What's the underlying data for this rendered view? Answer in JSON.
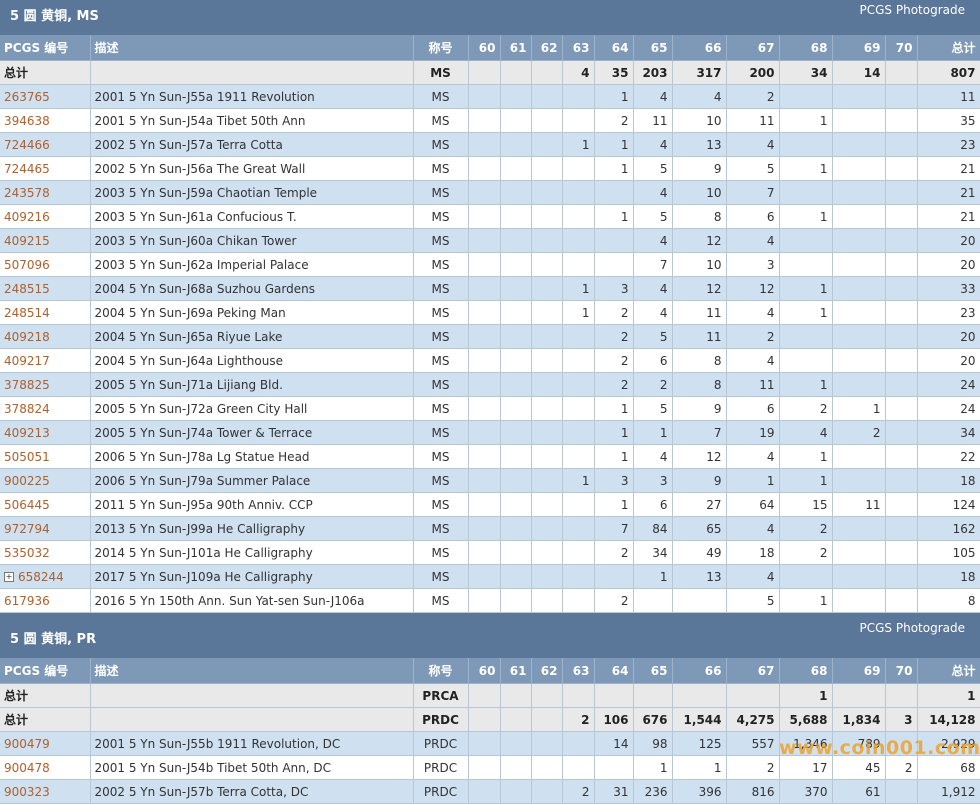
{
  "columns": [
    "PCGS 编号",
    "描述",
    "称号",
    "60",
    "61",
    "62",
    "63",
    "64",
    "65",
    "66",
    "67",
    "68",
    "69",
    "70",
    "总计"
  ],
  "sections": [
    {
      "title": "5 圆 黄铜, MS",
      "link": "PCGS Photograde",
      "totals": [
        {
          "label": "总计",
          "grade": "MS",
          "vals": [
            "",
            "",
            "",
            "4",
            "35",
            "203",
            "317",
            "200",
            "34",
            "14",
            "",
            "807"
          ]
        }
      ],
      "rows": [
        {
          "id": "263765",
          "desc": "2001 5 Yn Sun-J55a 1911 Revolution",
          "grade": "MS",
          "vals": [
            "",
            "",
            "",
            "",
            "1",
            "4",
            "4",
            "2",
            "",
            "",
            "",
            "11"
          ]
        },
        {
          "id": "394638",
          "desc": "2001 5 Yn Sun-J54a Tibet 50th Ann",
          "grade": "MS",
          "vals": [
            "",
            "",
            "",
            "",
            "2",
            "11",
            "10",
            "11",
            "1",
            "",
            "",
            "35"
          ]
        },
        {
          "id": "724466",
          "desc": "2002 5 Yn Sun-J57a Terra Cotta",
          "grade": "MS",
          "vals": [
            "",
            "",
            "",
            "1",
            "1",
            "4",
            "13",
            "4",
            "",
            "",
            "",
            "23"
          ]
        },
        {
          "id": "724465",
          "desc": "2002 5 Yn Sun-J56a The Great Wall",
          "grade": "MS",
          "vals": [
            "",
            "",
            "",
            "",
            "1",
            "5",
            "9",
            "5",
            "1",
            "",
            "",
            "21"
          ]
        },
        {
          "id": "243578",
          "desc": "2003 5 Yn Sun-J59a Chaotian Temple",
          "grade": "MS",
          "vals": [
            "",
            "",
            "",
            "",
            "",
            "4",
            "10",
            "7",
            "",
            "",
            "",
            "21"
          ]
        },
        {
          "id": "409216",
          "desc": "2003 5 Yn Sun-J61a Confucious T.",
          "grade": "MS",
          "vals": [
            "",
            "",
            "",
            "",
            "1",
            "5",
            "8",
            "6",
            "1",
            "",
            "",
            "21"
          ]
        },
        {
          "id": "409215",
          "desc": "2003 5 Yn Sun-J60a Chikan Tower",
          "grade": "MS",
          "vals": [
            "",
            "",
            "",
            "",
            "",
            "4",
            "12",
            "4",
            "",
            "",
            "",
            "20"
          ]
        },
        {
          "id": "507096",
          "desc": "2003 5 Yn Sun-J62a Imperial Palace",
          "grade": "MS",
          "vals": [
            "",
            "",
            "",
            "",
            "",
            "7",
            "10",
            "3",
            "",
            "",
            "",
            "20"
          ]
        },
        {
          "id": "248515",
          "desc": "2004 5 Yn Sun-J68a Suzhou Gardens",
          "grade": "MS",
          "vals": [
            "",
            "",
            "",
            "1",
            "3",
            "4",
            "12",
            "12",
            "1",
            "",
            "",
            "33"
          ]
        },
        {
          "id": "248514",
          "desc": "2004 5 Yn Sun-J69a Peking Man",
          "grade": "MS",
          "vals": [
            "",
            "",
            "",
            "1",
            "2",
            "4",
            "11",
            "4",
            "1",
            "",
            "",
            "23"
          ]
        },
        {
          "id": "409218",
          "desc": "2004 5 Yn Sun-J65a Riyue Lake",
          "grade": "MS",
          "vals": [
            "",
            "",
            "",
            "",
            "2",
            "5",
            "11",
            "2",
            "",
            "",
            "",
            "20"
          ]
        },
        {
          "id": "409217",
          "desc": "2004 5 Yn Sun-J64a Lighthouse",
          "grade": "MS",
          "vals": [
            "",
            "",
            "",
            "",
            "2",
            "6",
            "8",
            "4",
            "",
            "",
            "",
            "20"
          ]
        },
        {
          "id": "378825",
          "desc": "2005 5 Yn Sun-J71a Lijiang Bld.",
          "grade": "MS",
          "vals": [
            "",
            "",
            "",
            "",
            "2",
            "2",
            "8",
            "11",
            "1",
            "",
            "",
            "24"
          ]
        },
        {
          "id": "378824",
          "desc": "2005 5 Yn Sun-J72a Green City Hall",
          "grade": "MS",
          "vals": [
            "",
            "",
            "",
            "",
            "1",
            "5",
            "9",
            "6",
            "2",
            "1",
            "",
            "24"
          ]
        },
        {
          "id": "409213",
          "desc": "2005 5 Yn Sun-J74a Tower & Terrace",
          "grade": "MS",
          "vals": [
            "",
            "",
            "",
            "",
            "1",
            "1",
            "7",
            "19",
            "4",
            "2",
            "",
            "34"
          ]
        },
        {
          "id": "505051",
          "desc": "2006 5 Yn Sun-J78a Lg Statue Head",
          "grade": "MS",
          "vals": [
            "",
            "",
            "",
            "",
            "1",
            "4",
            "12",
            "4",
            "1",
            "",
            "",
            "22"
          ]
        },
        {
          "id": "900225",
          "desc": "2006 5 Yn Sun-J79a Summer Palace",
          "grade": "MS",
          "vals": [
            "",
            "",
            "",
            "1",
            "3",
            "3",
            "9",
            "1",
            "1",
            "",
            "",
            "18"
          ]
        },
        {
          "id": "506445",
          "desc": "2011 5 Yn Sun-J95a 90th Anniv. CCP",
          "grade": "MS",
          "vals": [
            "",
            "",
            "",
            "",
            "1",
            "6",
            "27",
            "64",
            "15",
            "11",
            "",
            "124"
          ]
        },
        {
          "id": "972794",
          "desc": "2013 5 Yn Sun-J99a He Calligraphy",
          "grade": "MS",
          "vals": [
            "",
            "",
            "",
            "",
            "7",
            "84",
            "65",
            "4",
            "2",
            "",
            "",
            "162"
          ]
        },
        {
          "id": "535032",
          "desc": "2014 5 Yn Sun-J101a He Calligraphy",
          "grade": "MS",
          "vals": [
            "",
            "",
            "",
            "",
            "2",
            "34",
            "49",
            "18",
            "2",
            "",
            "",
            "105"
          ]
        },
        {
          "id": "658244",
          "desc": "2017 5 Yn Sun-J109a He Calligraphy",
          "grade": "MS",
          "expand": "+",
          "vals": [
            "",
            "",
            "",
            "",
            "",
            "1",
            "13",
            "4",
            "",
            "",
            "",
            "18"
          ]
        },
        {
          "id": "617936",
          "desc": "2016 5 Yn 150th Ann. Sun Yat-sen Sun-J106a",
          "grade": "MS",
          "vals": [
            "",
            "",
            "",
            "",
            "2",
            "",
            "",
            "5",
            "1",
            "",
            "",
            "8"
          ]
        }
      ]
    },
    {
      "title": "5 圆 黄铜, PR",
      "link": "PCGS Photograde",
      "totals": [
        {
          "label": "总计",
          "grade": "PRCA",
          "vals": [
            "",
            "",
            "",
            "",
            "",
            "",
            "",
            "",
            "1",
            "",
            "",
            "1"
          ]
        },
        {
          "label": "总计",
          "grade": "PRDC",
          "vals": [
            "",
            "",
            "",
            "2",
            "106",
            "676",
            "1,544",
            "4,275",
            "5,688",
            "1,834",
            "3",
            "14,128"
          ]
        }
      ],
      "rows": [
        {
          "id": "900479",
          "desc": "2001 5 Yn Sun-J55b 1911 Revolution, DC",
          "grade": "PRDC",
          "vals": [
            "",
            "",
            "",
            "",
            "14",
            "98",
            "125",
            "557",
            "1,346",
            "789",
            "",
            "2,929"
          ]
        },
        {
          "id": "900478",
          "desc": "2001 5 Yn Sun-J54b Tibet 50th Ann, DC",
          "grade": "PRDC",
          "vals": [
            "",
            "",
            "",
            "",
            "",
            "1",
            "1",
            "2",
            "17",
            "45",
            "2",
            "68"
          ]
        },
        {
          "id": "900323",
          "desc": "2002 5 Yn Sun-J57b Terra Cotta, DC",
          "grade": "PRDC",
          "vals": [
            "",
            "",
            "",
            "2",
            "31",
            "236",
            "396",
            "816",
            "370",
            "61",
            "",
            "1,912"
          ]
        }
      ]
    }
  ],
  "watermark": "www.coin001.com",
  "colors": {
    "header_bar": "#5a7699",
    "column_header": "#7e98b8",
    "row_alt": "#cfe0f0",
    "total_row": "#e9e9e9",
    "id_link": "#b0602a"
  }
}
